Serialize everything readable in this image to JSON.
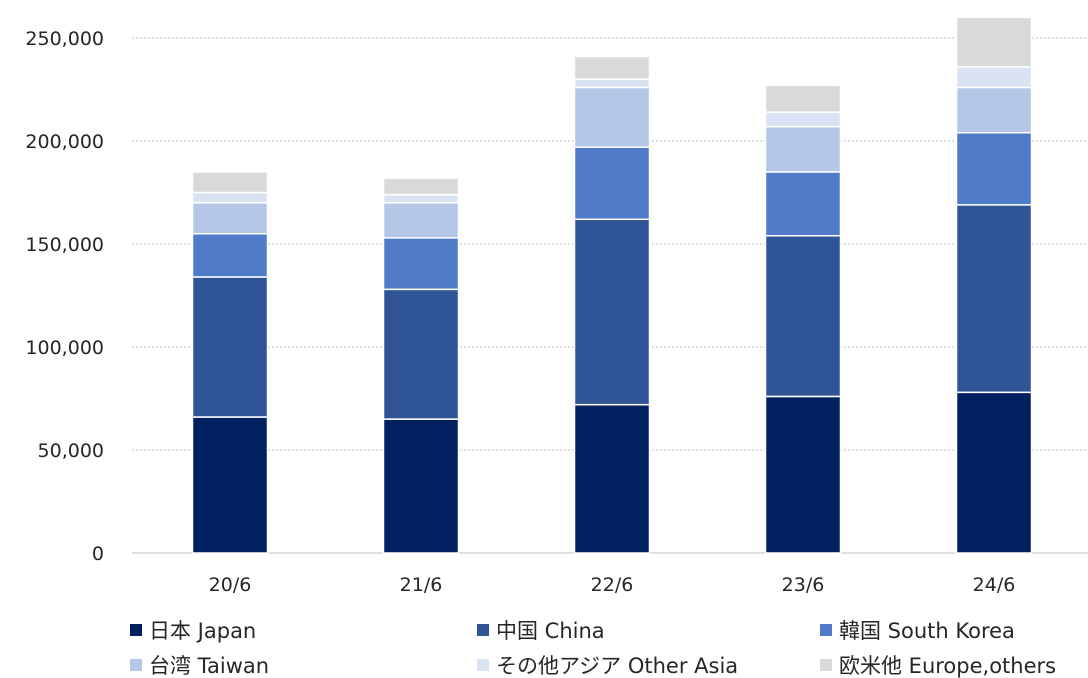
{
  "chart_data": {
    "type": "bar",
    "stacked": true,
    "categories": [
      "20/6",
      "21/6",
      "22/6",
      "23/6",
      "24/6"
    ],
    "y_ticks": [
      "0",
      "50,000",
      "100,000",
      "150,000",
      "200,000",
      "250,000"
    ],
    "ylim": [
      0,
      262000
    ],
    "grid": true,
    "legend_position": "bottom",
    "series": [
      {
        "name": "日本 Japan",
        "color": "#002060",
        "values": [
          66000,
          65000,
          72000,
          76000,
          78000
        ]
      },
      {
        "name": "中国 China",
        "color": "#2F5597",
        "values": [
          68000,
          63000,
          90000,
          78000,
          91000
        ]
      },
      {
        "name": "韓国 South Korea",
        "color": "#4F7BC9",
        "values": [
          21000,
          25000,
          35000,
          31000,
          35000
        ]
      },
      {
        "name": "台湾 Taiwan",
        "color": "#B4C7E7",
        "values": [
          15000,
          17000,
          29000,
          22000,
          22000
        ]
      },
      {
        "name": "その他アジア Other Asia",
        "color": "#DAE3F3",
        "values": [
          5000,
          4000,
          4000,
          7000,
          10000
        ]
      },
      {
        "name": "欧米他 Europe,others",
        "color": "#D9D9D9",
        "values": [
          10000,
          8000,
          11000,
          13000,
          24000
        ]
      }
    ]
  }
}
